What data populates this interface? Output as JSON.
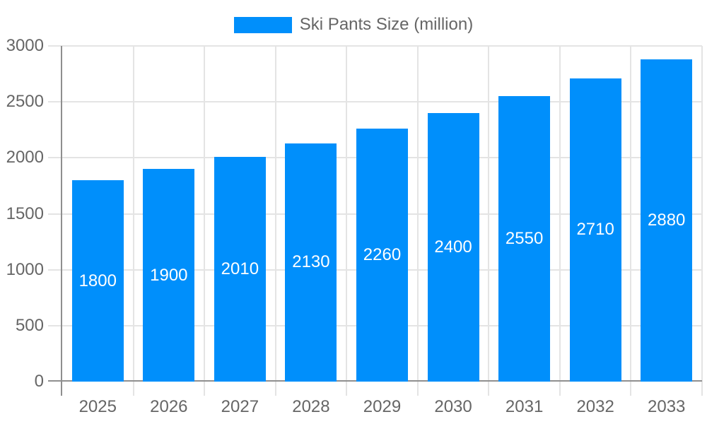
{
  "chart_data": {
    "type": "bar",
    "title": "Ski Pants Size (million)",
    "legend": {
      "position": "top",
      "label": "Ski Pants Size (million)"
    },
    "categories": [
      "2025",
      "2026",
      "2027",
      "2028",
      "2029",
      "2030",
      "2031",
      "2032",
      "2033"
    ],
    "series": [
      {
        "name": "Ski Pants Size (million)",
        "values": [
          1800,
          1900,
          2010,
          2130,
          2260,
          2400,
          2550,
          2710,
          2880
        ]
      }
    ],
    "values": [
      1800,
      1900,
      2010,
      2130,
      2260,
      2400,
      2550,
      2710,
      2880
    ],
    "data_labels": [
      "1800",
      "1900",
      "2010",
      "2130",
      "2260",
      "2400",
      "2550",
      "2710",
      "2880"
    ],
    "data_label_position": "inside-center",
    "xlabel": "",
    "ylabel": "",
    "ylim": [
      0,
      3000
    ],
    "yticks": [
      0,
      500,
      1000,
      1500,
      2000,
      2500,
      3000
    ],
    "grid": true,
    "legend_visible": true,
    "colors": {
      "bar": "#008FFB",
      "axis_text": "#666666",
      "data_label_text": "#ffffff",
      "gridline": "#e4e4e4",
      "axis_line": "#8f8f8f",
      "background": "#ffffff"
    }
  }
}
